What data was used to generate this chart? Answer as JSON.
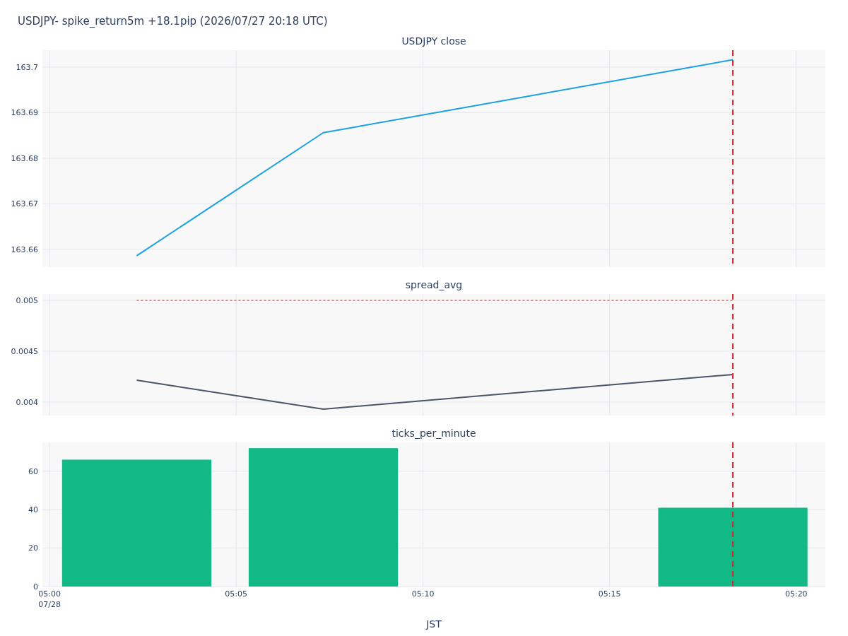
{
  "chart_data": [
    {
      "type": "line",
      "title": "USDJPY close",
      "x": [
        5.0389,
        5.1222,
        5.305
      ],
      "xlim": [
        4.9968,
        5.3463
      ],
      "xticks": [
        {
          "value": 5,
          "label": null
        },
        {
          "value": 5.0833,
          "label": null
        },
        {
          "value": 5.1667,
          "label": null
        },
        {
          "value": 5.25,
          "label": null
        },
        {
          "value": 5.3333,
          "label": null
        }
      ],
      "series": [
        {
          "color": "#1ba1e2",
          "values": [
            163.6586,
            163.6856,
            163.7016
          ]
        }
      ],
      "ylim": [
        163.6561,
        163.7037
      ],
      "yticks": [
        163.66,
        163.67,
        163.68,
        163.69,
        163.7
      ],
      "grid": true,
      "tick_labels": "y",
      "ref_lines": [
        {
          "axis": "x",
          "value": 5.305,
          "color": "#d62728",
          "line_style": "dashed"
        }
      ]
    },
    {
      "type": "line",
      "title": "spread_avg",
      "x": [
        5.0389,
        5.1222,
        5.305
      ],
      "xlim": [
        4.9968,
        5.3463
      ],
      "xticks": [
        {
          "value": 5,
          "label": null
        },
        {
          "value": 5.0833,
          "label": null
        },
        {
          "value": 5.1667,
          "label": null
        },
        {
          "value": 5.25,
          "label": null
        },
        {
          "value": 5.3333,
          "label": null
        }
      ],
      "series": [
        {
          "color": "#4a5568",
          "values": [
            0.004215,
            0.003931,
            0.004271
          ]
        },
        {
          "color": "#ef5350",
          "x": [
            5.0389,
            5.305
          ],
          "values": [
            0.005,
            0.005
          ],
          "line_style": "dotted"
        }
      ],
      "ylim": [
        0.003868,
        0.005063
      ],
      "yticks": [
        0.004,
        0.0045,
        0.005
      ],
      "grid": true,
      "tick_labels": "y",
      "ref_lines": [
        {
          "axis": "x",
          "value": 5.305,
          "color": "#d62728",
          "line_style": "dashed"
        }
      ]
    },
    {
      "type": "bar",
      "title": "ticks_per_minute",
      "xlabel": "JST",
      "x": [
        5.0389,
        5.1222,
        5.305
      ],
      "xlim": [
        4.9968,
        5.3463
      ],
      "xticks": [
        {
          "value": 5,
          "label": "05:00\n07/28"
        },
        {
          "value": 5.0833,
          "label": "05:05"
        },
        {
          "value": 5.1667,
          "label": "05:10"
        },
        {
          "value": 5.25,
          "label": "05:15"
        },
        {
          "value": 5.3333,
          "label": "05:20"
        }
      ],
      "series": [
        {
          "color": "#12b886",
          "values": [
            66,
            72,
            41
          ]
        }
      ],
      "ylim": [
        0,
        75
      ],
      "yticks": [
        0,
        20,
        40,
        60
      ],
      "grid": true,
      "ref_lines": [
        {
          "axis": "x",
          "value": 5.305,
          "color": "#d62728",
          "line_style": "dashed"
        }
      ],
      "annotations": [
        "USDJPY- spike_return5m +18.1pip (2026/07/27 20:18 UTC)"
      ]
    }
  ]
}
